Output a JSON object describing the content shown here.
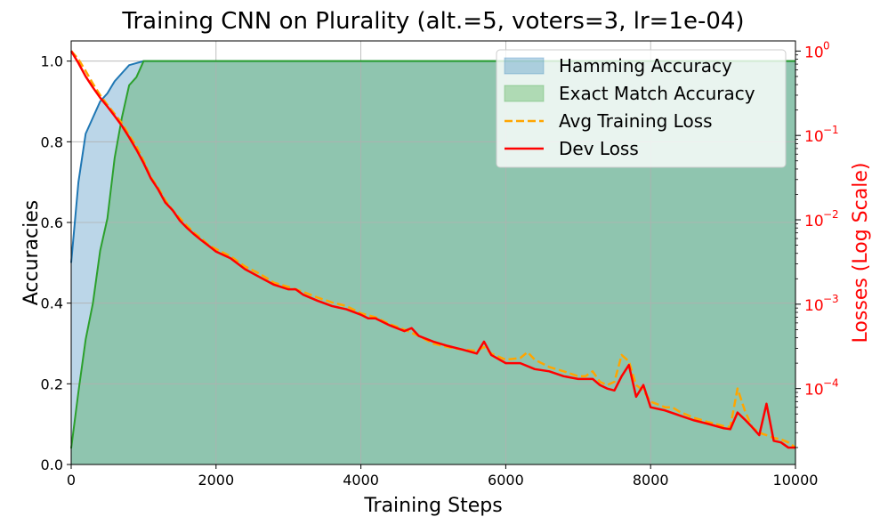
{
  "chart_data": {
    "type": "area",
    "title": "Training CNN on Plurality (alt.=5, voters=3, lr=1e-04)",
    "xlabel": "Training Steps",
    "ylabel": "Accuracies",
    "y2label": "Losses (Log Scale)",
    "xlim": [
      0,
      10000
    ],
    "ylim": [
      0,
      1.05
    ],
    "y2lim_log10": [
      -4.9,
      0.12
    ],
    "y2scale": "log",
    "grid": true,
    "legend_position": "top-right",
    "x_ticks": [
      0,
      2000,
      4000,
      6000,
      8000,
      10000
    ],
    "x_tick_labels": [
      "0",
      "2000",
      "4000",
      "6000",
      "8000",
      "10000"
    ],
    "y_ticks": [
      0.0,
      0.2,
      0.4,
      0.6,
      0.8,
      1.0
    ],
    "y_tick_labels": [
      "0.0",
      "0.2",
      "0.4",
      "0.6",
      "0.8",
      "1.0"
    ],
    "y2_ticks": [
      0.0001,
      0.001,
      0.01,
      0.1,
      1
    ],
    "y2_tick_labels": [
      {
        "base": "10",
        "exp": "−4"
      },
      {
        "base": "10",
        "exp": "−3"
      },
      {
        "base": "10",
        "exp": "−2"
      },
      {
        "base": "10",
        "exp": "−1"
      },
      {
        "base": "10",
        "exp": "0"
      }
    ],
    "colors": {
      "hamming": "#1f77b4",
      "exact": "#2ca02c",
      "train_loss": "#ffa500",
      "dev_loss": "#ff0000",
      "right_axis": "#ff0000"
    },
    "series": [
      {
        "name": "Hamming Accuracy",
        "kind": "area",
        "axis": "left",
        "x": [
          0,
          100,
          200,
          300,
          400,
          500,
          600,
          700,
          800,
          900,
          1000,
          1200,
          10000
        ],
        "y": [
          0.5,
          0.7,
          0.82,
          0.86,
          0.9,
          0.92,
          0.95,
          0.97,
          0.99,
          0.995,
          1.0,
          1.0,
          1.0
        ]
      },
      {
        "name": "Exact Match Accuracy",
        "kind": "area",
        "axis": "left",
        "x": [
          0,
          100,
          200,
          300,
          400,
          500,
          600,
          700,
          800,
          900,
          1000,
          1200,
          10000
        ],
        "y": [
          0.04,
          0.18,
          0.31,
          0.4,
          0.53,
          0.61,
          0.76,
          0.86,
          0.94,
          0.96,
          1.0,
          1.0,
          1.0
        ]
      },
      {
        "name": "Avg Training Loss",
        "kind": "line",
        "style": "dashed",
        "axis": "right",
        "x": [
          0,
          100,
          200,
          300,
          400,
          500,
          600,
          700,
          800,
          900,
          1000,
          1100,
          1200,
          1300,
          1400,
          1500,
          1600,
          1700,
          1800,
          1900,
          2000,
          2200,
          2400,
          2600,
          2800,
          3000,
          3200,
          3400,
          3600,
          3800,
          4000,
          4200,
          4400,
          4600,
          4800,
          5000,
          5200,
          5400,
          5600,
          5700,
          5800,
          6000,
          6200,
          6300,
          6400,
          6600,
          6800,
          7000,
          7100,
          7200,
          7300,
          7400,
          7500,
          7600,
          7700,
          7800,
          7900,
          8000,
          8200,
          8300,
          8400,
          8600,
          8800,
          9000,
          9100,
          9200,
          9300,
          9400,
          9500,
          9600,
          9700,
          9800,
          9900,
          10000
        ],
        "y": [
          1.0,
          0.8,
          0.58,
          0.41,
          0.3,
          0.23,
          0.18,
          0.14,
          0.1,
          0.075,
          0.05,
          0.032,
          0.024,
          0.017,
          0.013,
          0.0105,
          0.0085,
          0.007,
          0.006,
          0.005,
          0.0045,
          0.0037,
          0.0028,
          0.0023,
          0.0018,
          0.0016,
          0.0014,
          0.0012,
          0.00105,
          0.00095,
          0.00078,
          0.0007,
          0.00058,
          0.0005,
          0.00042,
          0.00034,
          0.00031,
          0.00029,
          0.00028,
          0.00031,
          0.00026,
          0.00022,
          0.00023,
          0.00027,
          0.00022,
          0.00018,
          0.00016,
          0.00014,
          0.00014,
          0.00016,
          0.00012,
          0.00011,
          0.00012,
          0.00025,
          0.00021,
          0.00011,
          9.5e-05,
          7e-05,
          6e-05,
          6e-05,
          5.3e-05,
          4.5e-05,
          4e-05,
          3.6e-05,
          3.5e-05,
          0.0001,
          5.5e-05,
          3.5e-05,
          3e-05,
          2.8e-05,
          2.6e-05,
          2.5e-05,
          2.3e-05,
          2e-05
        ]
      },
      {
        "name": "Dev Loss",
        "kind": "line",
        "style": "solid",
        "axis": "right",
        "x": [
          0,
          100,
          200,
          300,
          400,
          500,
          600,
          700,
          800,
          900,
          1000,
          1100,
          1200,
          1300,
          1400,
          1500,
          1600,
          1700,
          1800,
          1900,
          2000,
          2200,
          2400,
          2600,
          2800,
          3000,
          3100,
          3200,
          3400,
          3600,
          3800,
          4000,
          4100,
          4200,
          4400,
          4600,
          4700,
          4800,
          5000,
          5200,
          5400,
          5600,
          5700,
          5800,
          6000,
          6200,
          6400,
          6600,
          6800,
          7000,
          7100,
          7200,
          7300,
          7400,
          7500,
          7600,
          7700,
          7800,
          7900,
          8000,
          8200,
          8400,
          8600,
          8800,
          9000,
          9100,
          9200,
          9300,
          9400,
          9500,
          9600,
          9700,
          9800,
          9900,
          10000
        ],
        "y": [
          1.0,
          0.72,
          0.5,
          0.37,
          0.28,
          0.22,
          0.17,
          0.13,
          0.095,
          0.068,
          0.047,
          0.031,
          0.023,
          0.016,
          0.013,
          0.0098,
          0.008,
          0.0067,
          0.0057,
          0.0049,
          0.0042,
          0.0035,
          0.0026,
          0.0021,
          0.0017,
          0.0015,
          0.0015,
          0.0013,
          0.0011,
          0.00095,
          0.00087,
          0.00075,
          0.00068,
          0.00068,
          0.00056,
          0.00048,
          0.00052,
          0.00042,
          0.00036,
          0.00032,
          0.00029,
          0.00026,
          0.00036,
          0.00025,
          0.0002,
          0.0002,
          0.00017,
          0.00016,
          0.00014,
          0.00013,
          0.00013,
          0.00013,
          0.00011,
          0.0001,
          9.5e-05,
          0.00014,
          0.00019,
          8e-05,
          0.00011,
          6e-05,
          5.5e-05,
          4.8e-05,
          4.2e-05,
          3.8e-05,
          3.4e-05,
          3.3e-05,
          5.2e-05,
          4.3e-05,
          3.5e-05,
          2.8e-05,
          6.6e-05,
          2.4e-05,
          2.3e-05,
          2e-05,
          2e-05
        ]
      }
    ]
  }
}
